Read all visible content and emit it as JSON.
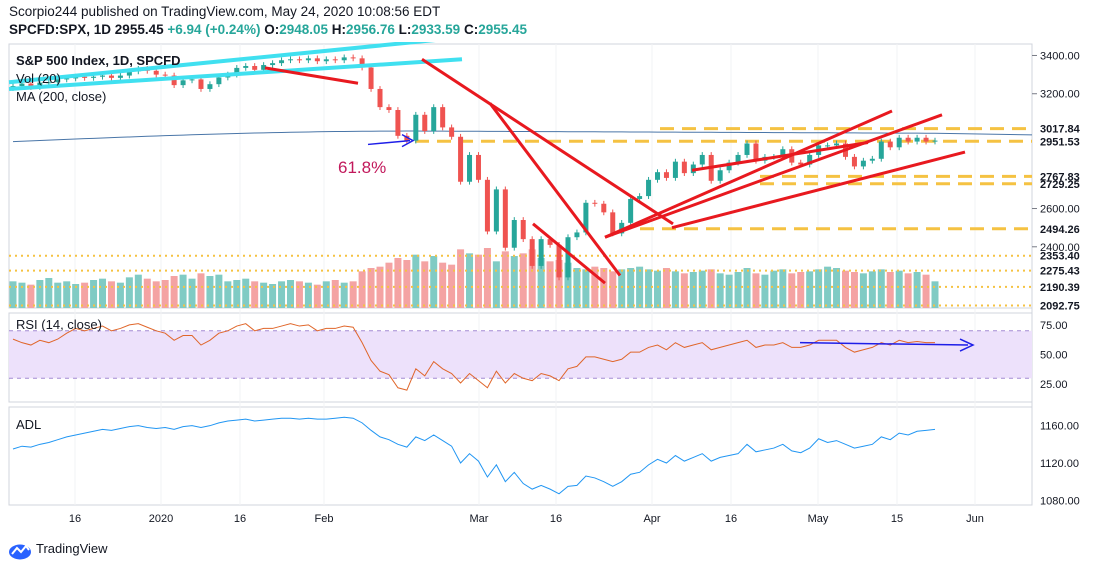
{
  "header": {
    "publisher_line": "Scorpio244 published on TradingView.com, May 24, 2020 10:08:56 EDT",
    "symbol": "SPCFD:SPX, 1D",
    "last": "2955.45",
    "change": "+6.94 (+0.24%)",
    "open_label": "O:",
    "open": "2948.05",
    "high_label": "H:",
    "high": "2956.76",
    "low_label": "L:",
    "low": "2933.59",
    "close_label": "C:",
    "close": "2955.45"
  },
  "legend": {
    "title": "S&P 500 Index, 1D, SPCFD",
    "vol": "Vol (20)",
    "ma": "MA (200, close)",
    "rsi": "RSI (14, close)",
    "adl": "ADL"
  },
  "annotation": {
    "fib": "61.8%"
  },
  "footer": {
    "brand": "TradingView"
  },
  "colors": {
    "up": "#26a69a",
    "down": "#ef5350",
    "vol_up": "#80cbc4",
    "vol_down": "#f4a3a3",
    "trend_red": "#e8191f",
    "trend_cyan": "#40e0f0",
    "level_orange": "#f5c242",
    "ma": "#4a76a8",
    "rsi_line": "#e0662a",
    "rsi_band": "#ede1fb",
    "adl_line": "#2196f3",
    "arrow_blue": "#1e1ee8",
    "fib_text": "#c2185b"
  },
  "chart_data": {
    "type": "line",
    "title": "S&P 500 Index, 1D, SPCFD",
    "x_ticks": [
      "16",
      "2020",
      "16",
      "Feb",
      "Mar",
      "16",
      "Apr",
      "16",
      "May",
      "15",
      "Jun"
    ],
    "price_axis_ticks": [
      "3400.00",
      "3200.00",
      "2600.00",
      "2400.00"
    ],
    "price_levels": [
      "3017.84",
      "2951.53",
      "2767.83",
      "2729.25",
      "2494.26",
      "2353.40",
      "2275.43",
      "2190.39",
      "2092.75"
    ],
    "rsi_ticks": [
      "75.00",
      "50.00",
      "25.00"
    ],
    "adl_ticks": [
      "1160.00",
      "1120.00",
      "1080.00"
    ],
    "series": [
      {
        "name": "S&P 500 Index",
        "close": [
          3240,
          3253,
          3235,
          3258,
          3260,
          3275,
          3280,
          3289,
          3283,
          3289,
          3295,
          3283,
          3295,
          3317,
          3330,
          3320,
          3300,
          3295,
          3245,
          3270,
          3275,
          3225,
          3250,
          3285,
          3300,
          3335,
          3345,
          3325,
          3350,
          3360,
          3375,
          3380,
          3375,
          3385,
          3370,
          3380,
          3375,
          3390,
          3385,
          3337,
          3225,
          3130,
          3115,
          2980,
          2955,
          3090,
          3005,
          3130,
          3024,
          2975,
          2740,
          2880,
          2750,
          2480,
          2700,
          2395,
          2540,
          2440,
          2300,
          2440,
          2410,
          2240,
          2450,
          2475,
          2630,
          2625,
          2580,
          2470,
          2525,
          2650,
          2665,
          2750,
          2790,
          2760,
          2845,
          2785,
          2830,
          2880,
          2745,
          2800,
          2840,
          2880,
          2940,
          2850,
          2870,
          2870,
          2910,
          2840,
          2830,
          2880,
          2930,
          2930,
          2940,
          2870,
          2820,
          2850,
          2860,
          2950,
          2920,
          2970,
          2950,
          2970,
          2950,
          2955
        ]
      },
      {
        "name": "RSI",
        "values": [
          63,
          60,
          58,
          62,
          60,
          63,
          68,
          72,
          70,
          72,
          74,
          70,
          72,
          75,
          76,
          73,
          70,
          68,
          62,
          66,
          66,
          58,
          62,
          68,
          70,
          74,
          76,
          70,
          72,
          72,
          74,
          76,
          74,
          75,
          70,
          72,
          72,
          74,
          73,
          60,
          45,
          36,
          33,
          22,
          20,
          38,
          32,
          44,
          38,
          34,
          26,
          34,
          28,
          22,
          36,
          26,
          34,
          30,
          28,
          34,
          32,
          28,
          38,
          40,
          48,
          48,
          46,
          44,
          46,
          52,
          52,
          56,
          58,
          54,
          60,
          56,
          58,
          60,
          54,
          56,
          58,
          60,
          62,
          56,
          58,
          58,
          60,
          56,
          56,
          58,
          62,
          62,
          62,
          56,
          52,
          54,
          56,
          60,
          58,
          62,
          60,
          61,
          60,
          60
        ]
      },
      {
        "name": "ADL",
        "values": [
          1135,
          1138,
          1137,
          1140,
          1142,
          1145,
          1148,
          1150,
          1152,
          1154,
          1156,
          1155,
          1157,
          1159,
          1160,
          1158,
          1157,
          1158,
          1156,
          1159,
          1160,
          1158,
          1160,
          1163,
          1165,
          1166,
          1167,
          1165,
          1166,
          1167,
          1168,
          1168,
          1167,
          1168,
          1167,
          1167,
          1168,
          1169,
          1168,
          1163,
          1155,
          1148,
          1145,
          1140,
          1137,
          1148,
          1144,
          1150,
          1144,
          1138,
          1120,
          1130,
          1122,
          1105,
          1118,
          1100,
          1110,
          1098,
          1092,
          1096,
          1092,
          1087,
          1095,
          1096,
          1106,
          1104,
          1100,
          1095,
          1100,
          1108,
          1110,
          1118,
          1124,
          1120,
          1128,
          1122,
          1126,
          1130,
          1122,
          1126,
          1128,
          1130,
          1140,
          1132,
          1134,
          1136,
          1140,
          1133,
          1131,
          1136,
          1146,
          1142,
          1144,
          1140,
          1136,
          1138,
          1140,
          1148,
          1145,
          1152,
          1150,
          1154,
          1155,
          1156
        ]
      },
      {
        "name": "Volume",
        "values": [
          40,
          38,
          35,
          42,
          45,
          38,
          40,
          36,
          38,
          42,
          44,
          40,
          38,
          46,
          50,
          44,
          40,
          42,
          48,
          50,
          44,
          52,
          48,
          50,
          40,
          42,
          44,
          40,
          38,
          36,
          40,
          42,
          40,
          38,
          35,
          40,
          42,
          38,
          40,
          55,
          60,
          62,
          68,
          75,
          72,
          80,
          70,
          78,
          68,
          65,
          88,
          82,
          80,
          90,
          70,
          85,
          78,
          82,
          88,
          75,
          70,
          72,
          68,
          60,
          58,
          62,
          60,
          55,
          58,
          60,
          62,
          58,
          56,
          60,
          55,
          52,
          54,
          56,
          58,
          52,
          50,
          54,
          60,
          52,
          50,
          56,
          58,
          52,
          54,
          55,
          58,
          62,
          60,
          56,
          54,
          52,
          55,
          58,
          54,
          56,
          52,
          54,
          50,
          40
        ]
      }
    ]
  }
}
